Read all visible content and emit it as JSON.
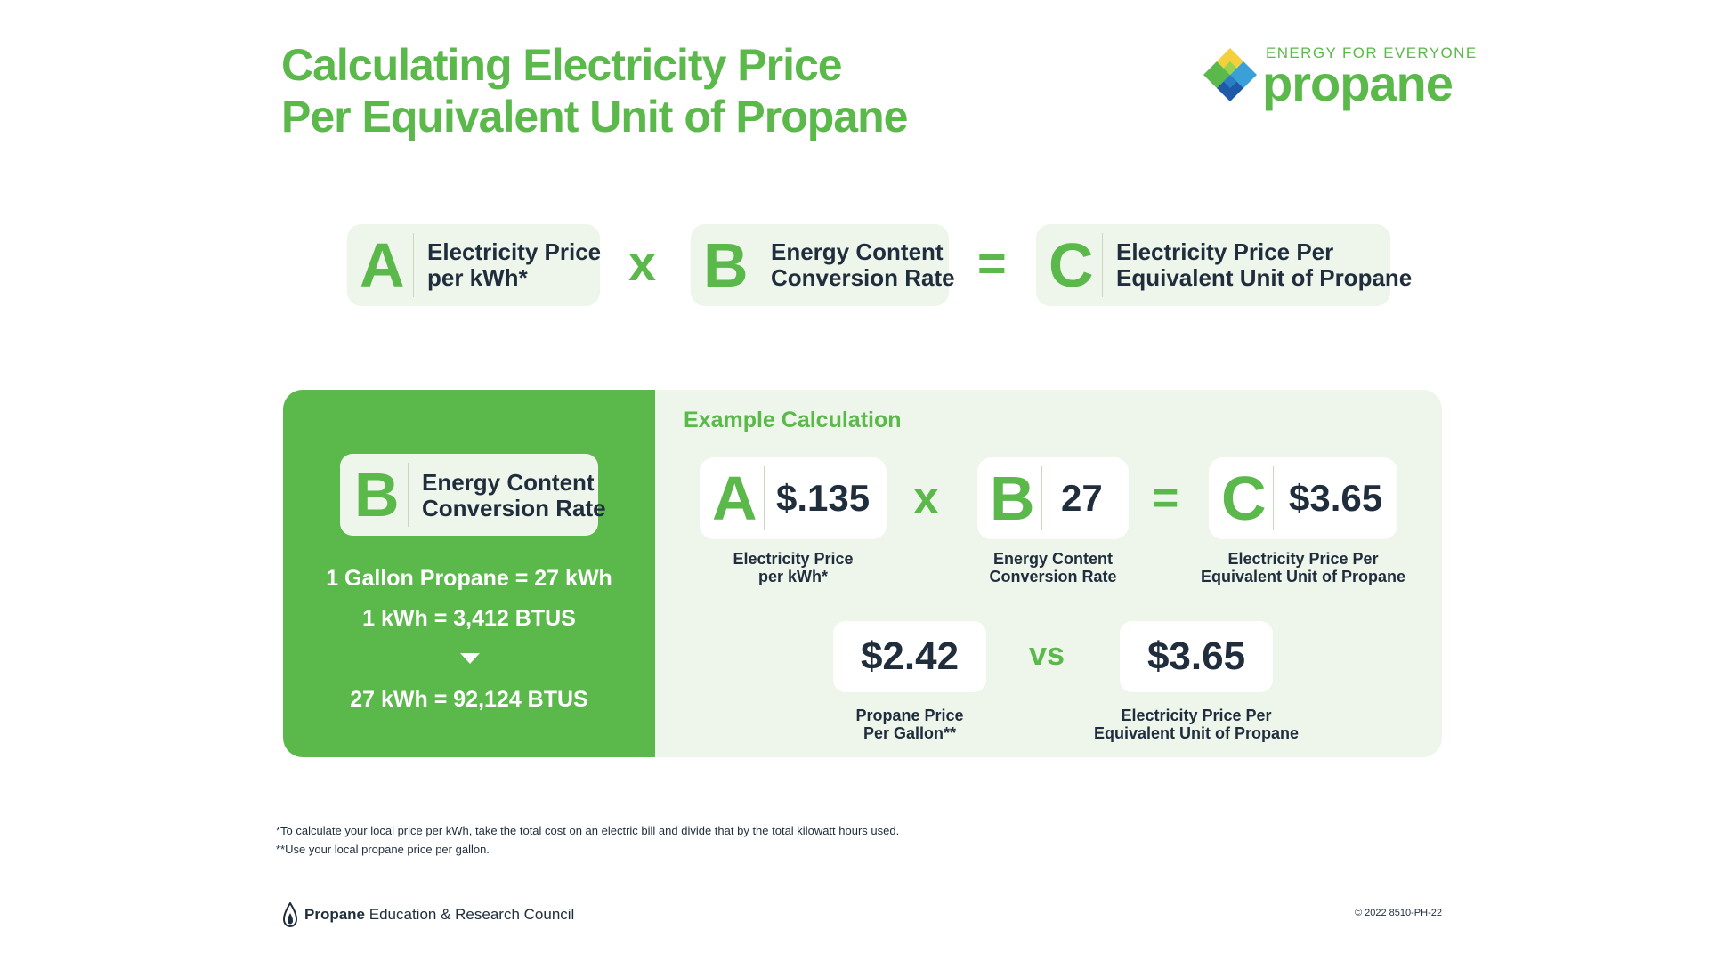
{
  "title": {
    "line1": "Calculating Electricity Price",
    "line2": "Per Equivalent Unit of Propane"
  },
  "logo": {
    "tagline": "ENERGY FOR EVERYONE",
    "wordmark": "propane"
  },
  "formula": {
    "a": {
      "letter": "A",
      "line1": "Electricity Price",
      "line2": "per kWh*"
    },
    "times": "x",
    "b": {
      "letter": "B",
      "line1": "Energy Content",
      "line2": "Conversion Rate"
    },
    "equals": "=",
    "c": {
      "letter": "C",
      "line1": "Electricity Price Per",
      "line2": "Equivalent Unit of Propane"
    }
  },
  "conversion": {
    "card": {
      "letter": "B",
      "line1": "Energy Content",
      "line2": "Conversion Rate"
    },
    "line1": "1 Gallon Propane = 27 kWh",
    "line2": "1 kWh = 3,412 BTUS",
    "line3": "27 kWh = 92,124 BTUS"
  },
  "example": {
    "title": "Example Calculation",
    "a": {
      "letter": "A",
      "value": "$.135",
      "cap1": "Electricity Price",
      "cap2": "per kWh*"
    },
    "times": "x",
    "b": {
      "letter": "B",
      "value": "27",
      "cap1": "Energy Content",
      "cap2": "Conversion Rate"
    },
    "equals": "=",
    "c": {
      "letter": "C",
      "value": "$3.65",
      "cap1": "Electricity Price Per",
      "cap2": "Equivalent Unit of Propane"
    },
    "compare": {
      "left": {
        "value": "$2.42",
        "cap1": "Propane Price",
        "cap2": "Per Gallon**"
      },
      "vs": "vs",
      "right": {
        "value": "$3.65",
        "cap1": "Electricity Price Per",
        "cap2": "Equivalent Unit of Propane"
      }
    }
  },
  "footnotes": {
    "note1": "*To calculate your local price per kWh, take the total cost on an electric bill and divide that by the total kilowatt hours used.",
    "note2": "**Use your local propane price per gallon."
  },
  "footer": {
    "org_bold": "Propane",
    "org_rest": " Education & Research Council",
    "code": "© 2022   8510-PH-22"
  },
  "colors": {
    "green": "#5bb84a",
    "light_green": "#eef5ea",
    "navy": "#1f2d3d"
  }
}
